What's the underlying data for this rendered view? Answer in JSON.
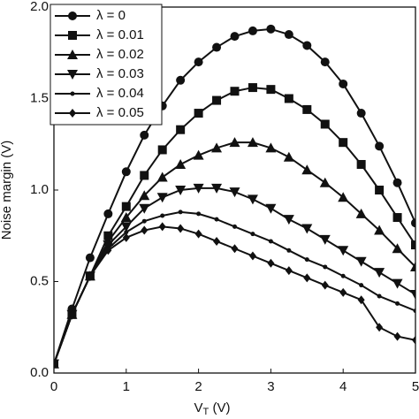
{
  "chart_data": {
    "type": "line",
    "x_label": [
      "V",
      "T",
      " (V)"
    ],
    "y_label": "Noise margin (V)",
    "x": [
      0,
      0.25,
      0.5,
      0.75,
      1,
      1.25,
      1.5,
      1.75,
      2,
      2.25,
      2.5,
      2.75,
      3,
      3.25,
      3.5,
      3.75,
      4,
      4.25,
      4.5,
      4.75,
      5
    ],
    "xlim": [
      0,
      5
    ],
    "xticks": [
      0,
      1,
      2,
      3,
      4,
      5
    ],
    "ylim": [
      0,
      2
    ],
    "yticks": [
      {
        "value": 0,
        "label": "0.0"
      },
      {
        "value": 0.5,
        "label": "0.5"
      },
      {
        "value": 1,
        "label": "1.0"
      },
      {
        "value": 1.5,
        "label": "1.5"
      },
      {
        "value": 2,
        "label": "2.0"
      }
    ],
    "legend": "upper left",
    "series": [
      {
        "name": "λ = 0",
        "color": "#111",
        "marker": "circle",
        "values": [
          0.05,
          0.35,
          0.63,
          0.87,
          1.1,
          1.3,
          1.46,
          1.6,
          1.7,
          1.78,
          1.84,
          1.87,
          1.88,
          1.85,
          1.79,
          1.7,
          1.58,
          1.42,
          1.24,
          1.04,
          0.82
        ]
      },
      {
        "name": "λ = 0.01",
        "color": "#111",
        "marker": "square",
        "values": [
          0.05,
          0.32,
          0.53,
          0.75,
          0.91,
          1.08,
          1.22,
          1.33,
          1.42,
          1.49,
          1.54,
          1.56,
          1.55,
          1.5,
          1.44,
          1.36,
          1.26,
          1.14,
          1.0,
          0.85,
          0.7
        ]
      },
      {
        "name": "λ = 0.02",
        "color": "#111",
        "marker": "triangle-up",
        "values": [
          0.05,
          0.32,
          0.53,
          0.72,
          0.85,
          0.97,
          1.07,
          1.14,
          1.19,
          1.23,
          1.26,
          1.26,
          1.23,
          1.18,
          1.11,
          1.04,
          0.96,
          0.87,
          0.78,
          0.68,
          0.58
        ]
      },
      {
        "name": "λ = 0.03",
        "color": "#111",
        "marker": "triangle-down",
        "values": [
          0.05,
          0.32,
          0.53,
          0.7,
          0.8,
          0.9,
          0.96,
          1.0,
          1.01,
          1.01,
          0.99,
          0.95,
          0.9,
          0.84,
          0.79,
          0.73,
          0.67,
          0.61,
          0.55,
          0.49,
          0.43
        ]
      },
      {
        "name": "λ = 0.04",
        "color": "#111",
        "marker": "dot",
        "values": [
          0.05,
          0.32,
          0.53,
          0.68,
          0.77,
          0.83,
          0.86,
          0.88,
          0.87,
          0.84,
          0.8,
          0.76,
          0.72,
          0.67,
          0.62,
          0.58,
          0.53,
          0.48,
          0.42,
          0.38,
          0.34
        ]
      },
      {
        "name": "λ = 0.05",
        "color": "#111",
        "marker": "diamond",
        "values": [
          0.05,
          0.32,
          0.53,
          0.67,
          0.74,
          0.78,
          0.8,
          0.79,
          0.76,
          0.72,
          0.68,
          0.64,
          0.6,
          0.56,
          0.52,
          0.48,
          0.44,
          0.4,
          0.25,
          0.2,
          0.18
        ]
      }
    ]
  }
}
